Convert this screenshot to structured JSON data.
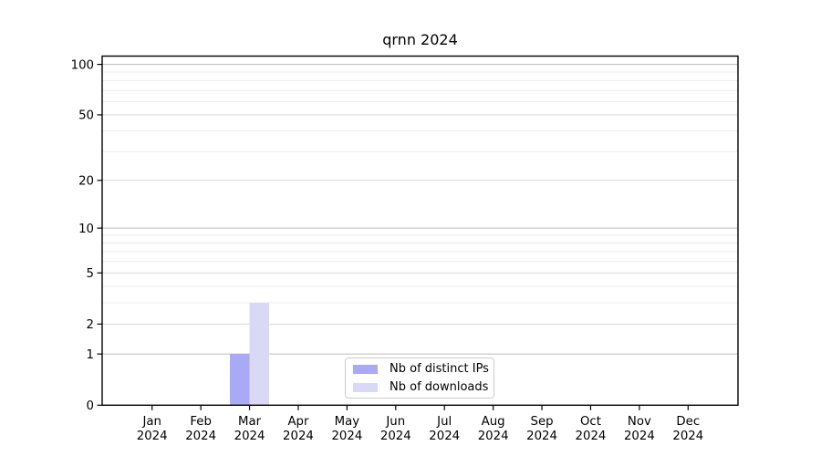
{
  "chart_data": {
    "type": "bar",
    "title": "qrnn 2024",
    "categories": [
      "Jan",
      "Feb",
      "Mar",
      "Apr",
      "May",
      "Jun",
      "Jul",
      "Aug",
      "Sep",
      "Oct",
      "Nov",
      "Dec"
    ],
    "year_label": "2024",
    "series": [
      {
        "name": "Nb of distinct IPs",
        "color": "#a9a9f5",
        "values": [
          0,
          0,
          1,
          0,
          0,
          0,
          0,
          0,
          0,
          0,
          0,
          0
        ]
      },
      {
        "name": "Nb of downloads",
        "color": "#d9d9f7",
        "values": [
          0,
          0,
          3,
          0,
          0,
          0,
          0,
          0,
          0,
          0,
          0,
          0
        ]
      }
    ],
    "yscale": "log1p",
    "ylim": [
      0,
      112
    ],
    "yticks": [
      0,
      1,
      2,
      5,
      10,
      20,
      50,
      100
    ],
    "emphasized_gridlines": [
      1,
      10,
      100
    ],
    "minor_gridlines": [
      3,
      4,
      6,
      7,
      8,
      9,
      30,
      40,
      60,
      70,
      80,
      90
    ],
    "grid": true,
    "legend_position": "bottom-center",
    "colors": {
      "axis": "#000000",
      "grid_emphasized": "#bcbcbc",
      "grid_major": "#d9d9d9",
      "grid_minor": "#ececec",
      "background": "#ffffff"
    }
  }
}
